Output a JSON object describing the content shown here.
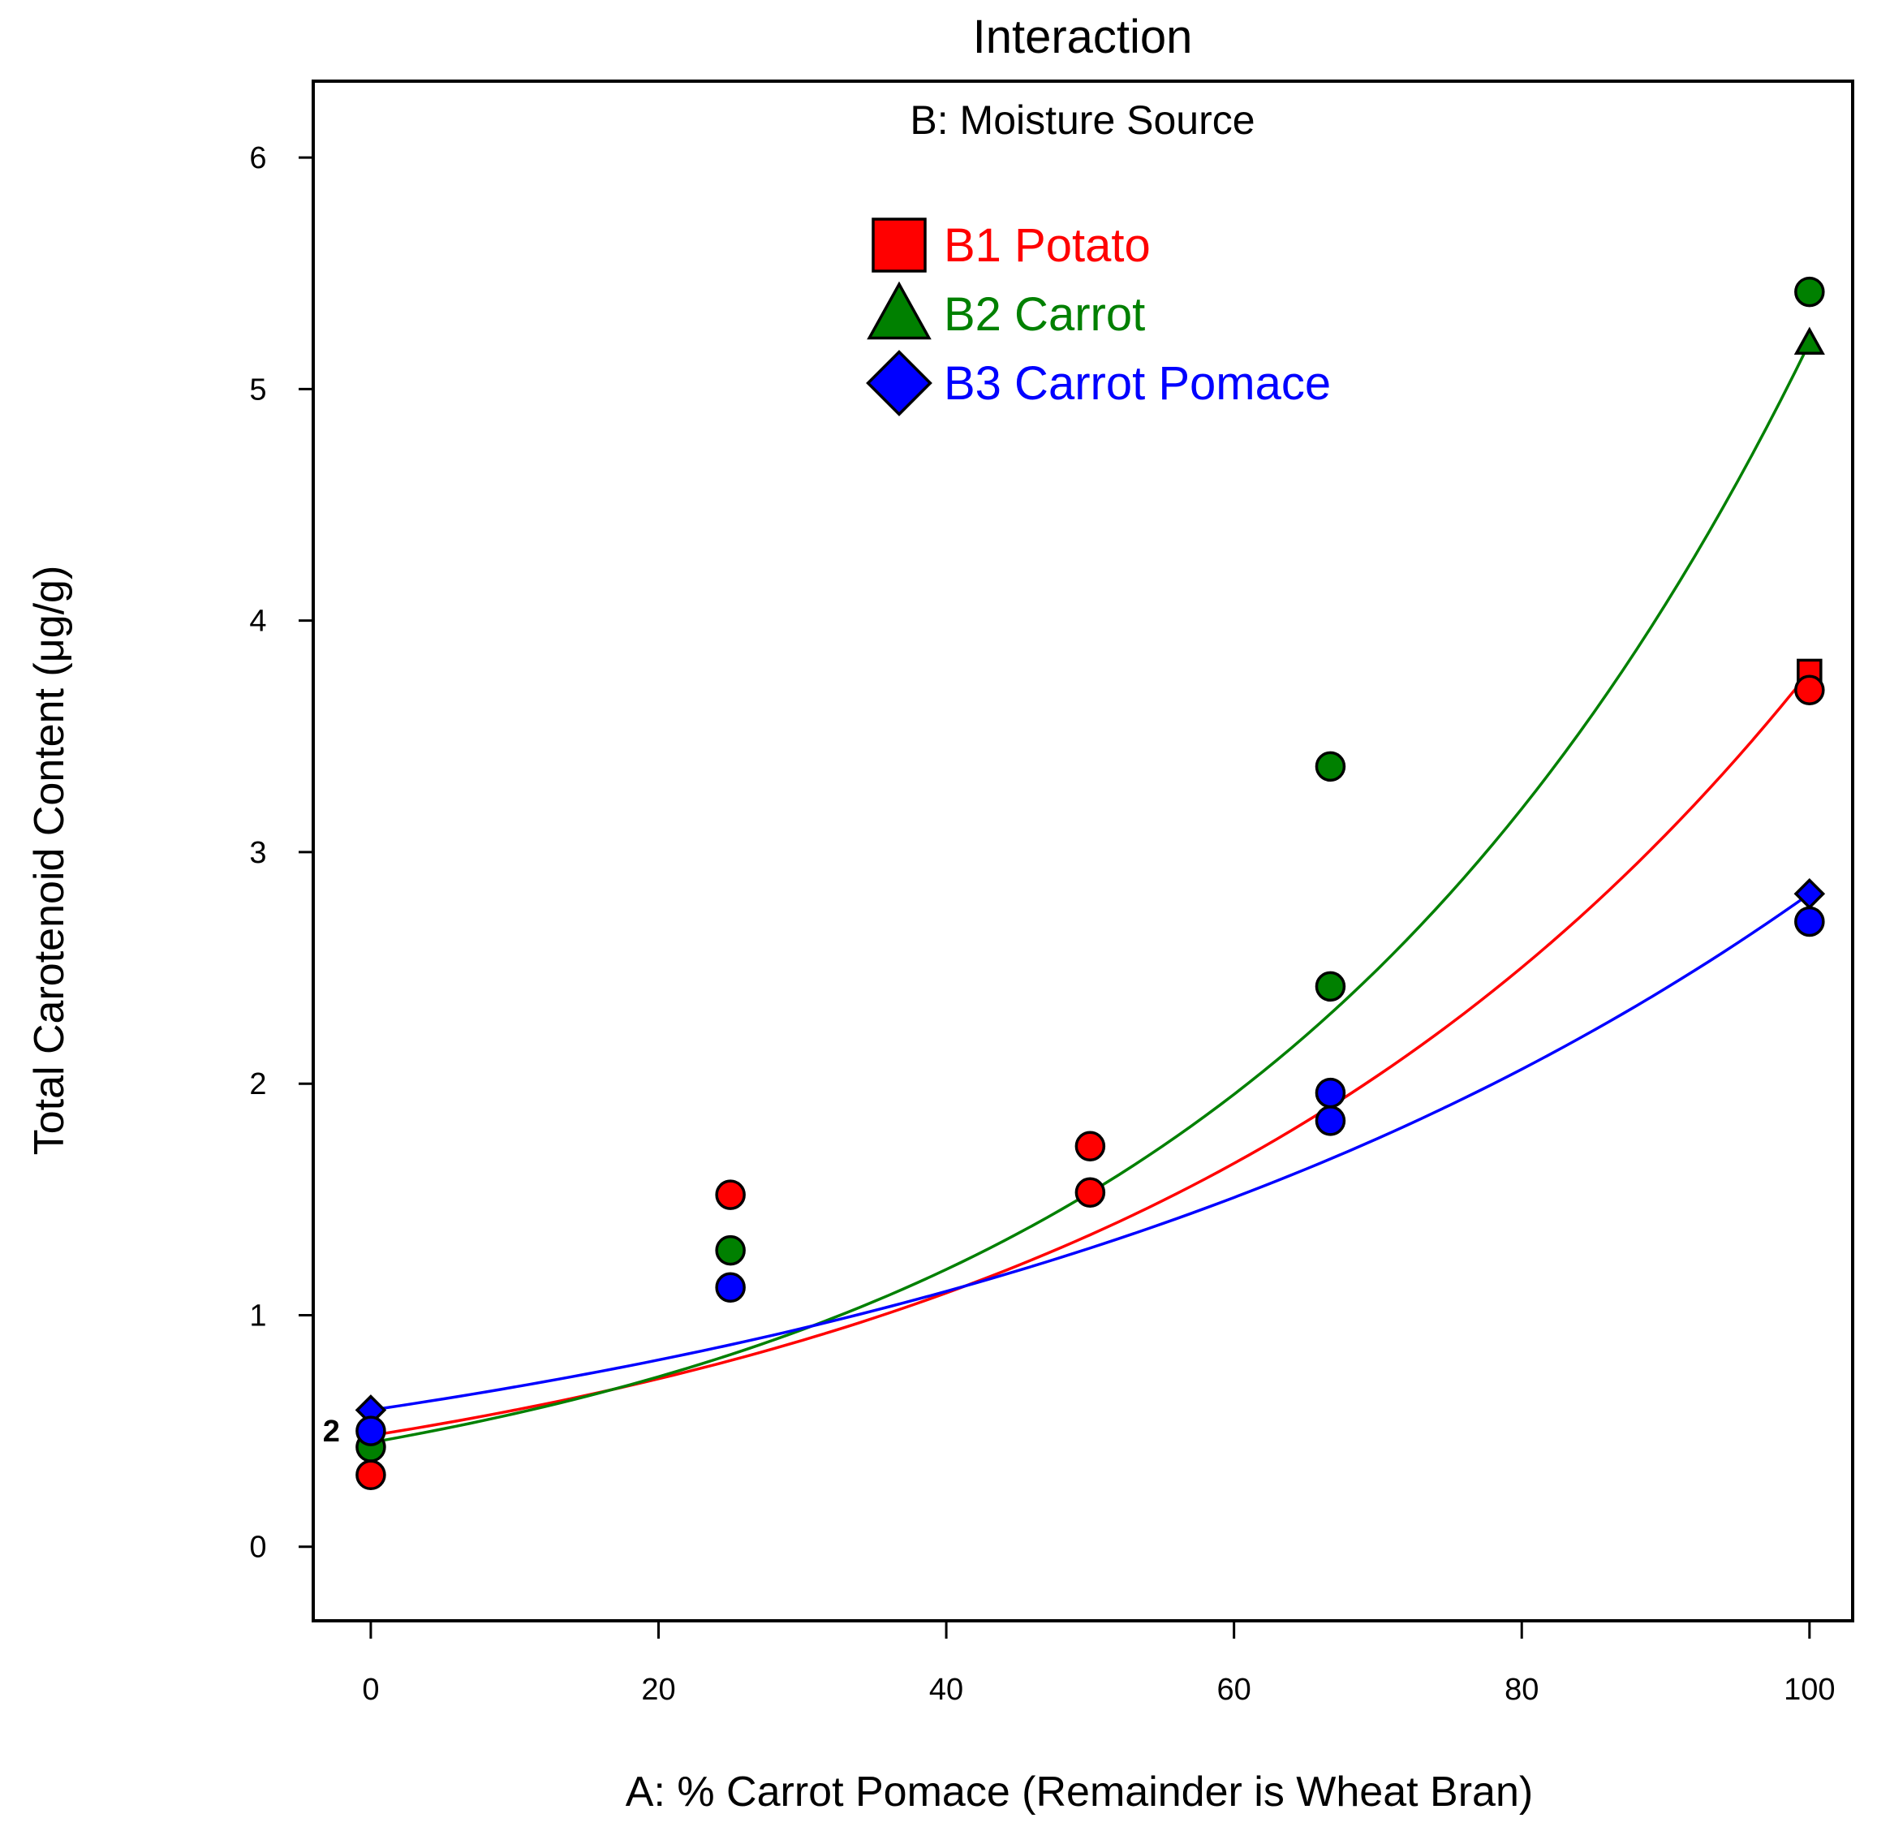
{
  "chart_data": {
    "type": "scatter",
    "title": "Interaction",
    "subtitle": "B: Moisture Source",
    "xlabel": "A: % Carrot Pomace (Remainder is Wheat Bran)",
    "ylabel": "Total Carotenoid Content (μg/g)",
    "xlim": [
      -4,
      103
    ],
    "ylim": [
      -0.32,
      6.33
    ],
    "xticks": [
      0,
      20,
      40,
      60,
      80,
      100
    ],
    "yticks": [
      0,
      1,
      2,
      3,
      4,
      5,
      6
    ],
    "series": [
      {
        "name": "B1 Potato",
        "color": "#ff0000",
        "marker": "square",
        "fit": {
          "x0": 0.48,
          "x100": 3.78
        },
        "predicted_points": [
          {
            "x": 100,
            "y": 3.78
          }
        ],
        "observed_points": [
          {
            "x": 0,
            "y": 0.31
          },
          {
            "x": 25,
            "y": 1.52
          },
          {
            "x": 50,
            "y": 1.73
          },
          {
            "x": 50,
            "y": 1.53
          },
          {
            "x": 100,
            "y": 3.7
          }
        ]
      },
      {
        "name": "B2 Carrot",
        "color": "#008000",
        "marker": "triangle",
        "fit": {
          "x0": 0.45,
          "x100": 5.2
        },
        "predicted_points": [
          {
            "x": 100,
            "y": 5.2
          }
        ],
        "observed_points": [
          {
            "x": 0,
            "y": 0.43
          },
          {
            "x": 25,
            "y": 1.28
          },
          {
            "x": 66.7,
            "y": 3.37
          },
          {
            "x": 66.7,
            "y": 2.42
          },
          {
            "x": 100,
            "y": 5.42
          }
        ]
      },
      {
        "name": "B3 Carrot Pomace",
        "color": "#0000ff",
        "marker": "diamond",
        "fit": {
          "x0": 0.59,
          "x100": 2.82
        },
        "predicted_points": [
          {
            "x": 0,
            "y": 0.59
          },
          {
            "x": 100,
            "y": 2.82
          }
        ],
        "observed_points": [
          {
            "x": 0,
            "y": 0.5
          },
          {
            "x": 25,
            "y": 1.12
          },
          {
            "x": 66.7,
            "y": 1.96
          },
          {
            "x": 66.7,
            "y": 1.84
          },
          {
            "x": 100,
            "y": 2.7
          }
        ]
      }
    ],
    "annotations": [
      {
        "text": "2",
        "x": 0,
        "y": 0.5,
        "note": "replicate count label"
      }
    ]
  }
}
